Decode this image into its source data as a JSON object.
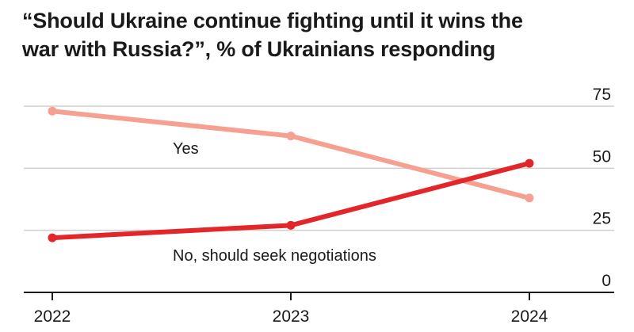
{
  "chart_data": {
    "type": "line",
    "title": "“Should Ukraine continue fighting until it wins the war with Russia?”, % of Ukrainians responding",
    "x": [
      "2022",
      "2023",
      "2024"
    ],
    "ylim": [
      0,
      75
    ],
    "yticks": [
      "0",
      "25",
      "50",
      "75"
    ],
    "grid": true,
    "series": [
      {
        "name": "Yes",
        "values": [
          73,
          63,
          38
        ],
        "color": "#f5a090"
      },
      {
        "name": "No, should seek negotiations",
        "values": [
          22,
          27,
          52
        ],
        "color": "#e3262a"
      }
    ]
  },
  "colors": {
    "grid": "#cfcfcf",
    "axis": "#1a1a1a"
  }
}
